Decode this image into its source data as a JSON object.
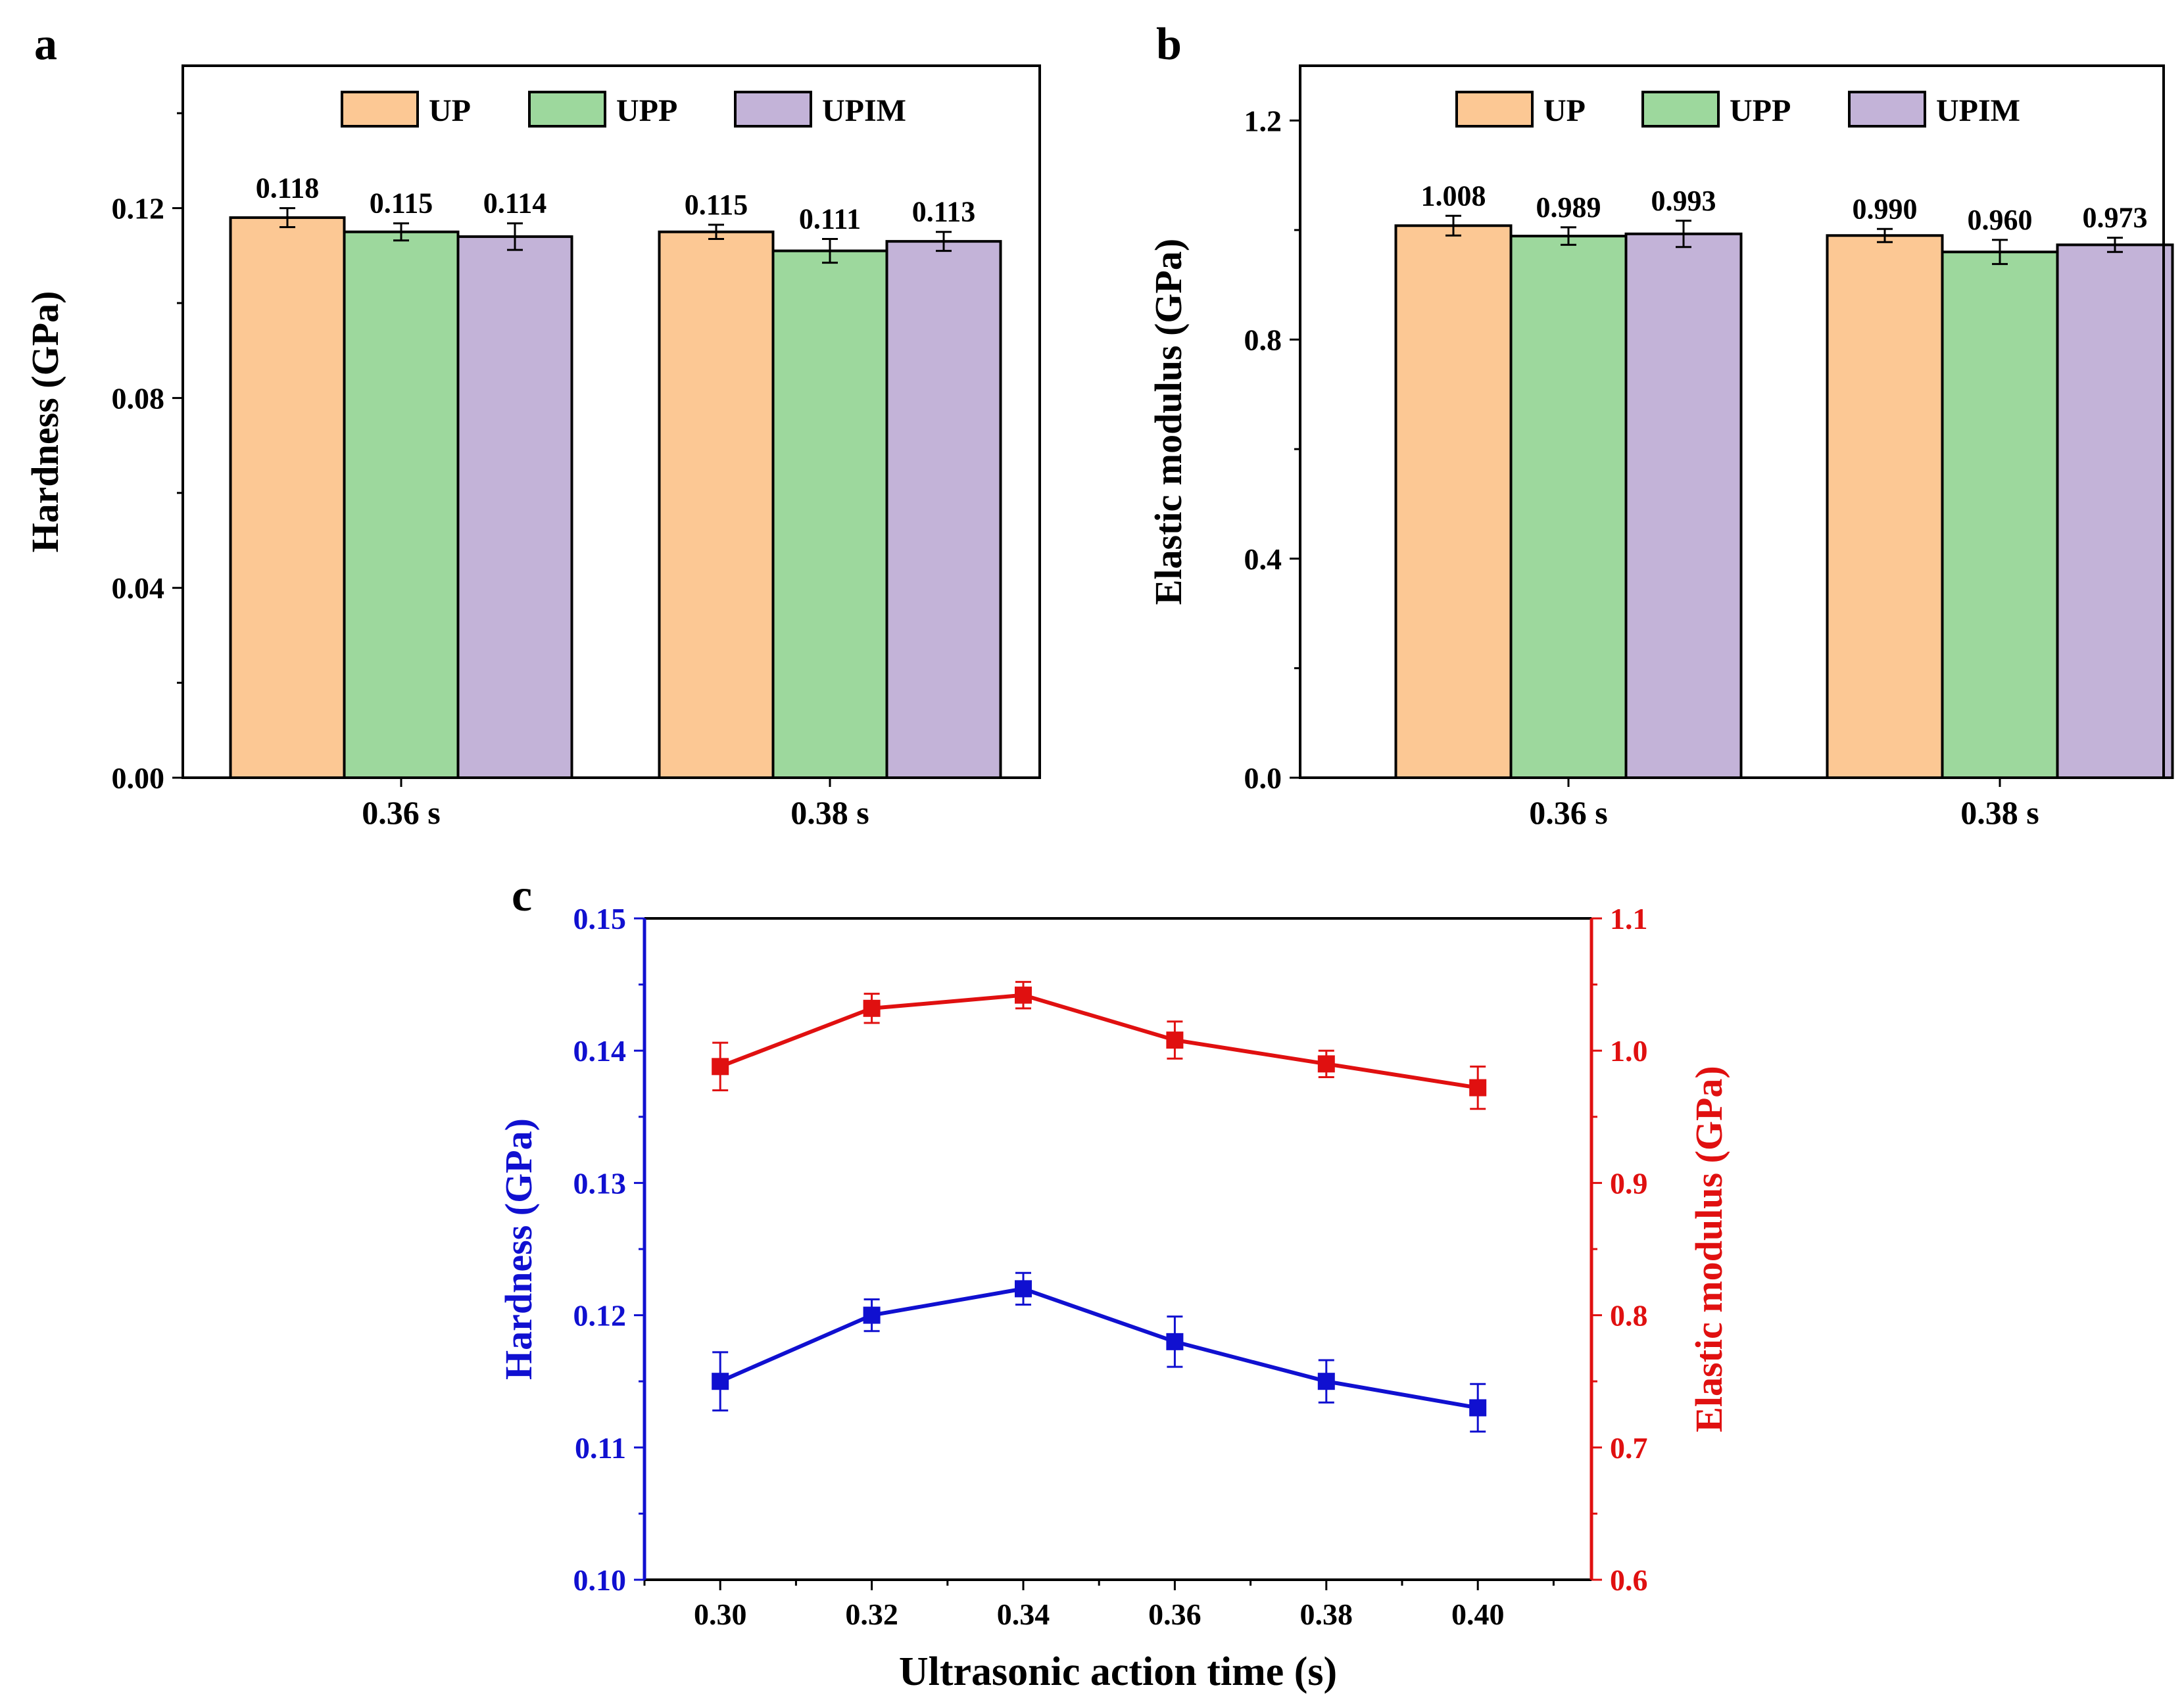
{
  "chart_data": [
    {
      "panel": "a",
      "type": "bar",
      "categories": [
        "0.36 s",
        "0.38 s"
      ],
      "series": [
        {
          "name": "UP",
          "color": "#FCC894",
          "values": [
            0.118,
            0.115
          ],
          "errors": [
            0.002,
            0.0015
          ],
          "labels": [
            "0.118",
            "0.115"
          ]
        },
        {
          "name": "UPP",
          "color": "#9DD89D",
          "values": [
            0.115,
            0.111
          ],
          "errors": [
            0.0018,
            0.0025
          ],
          "labels": [
            "0.115",
            "0.111"
          ]
        },
        {
          "name": "UPIM",
          "color": "#C3B3D8",
          "values": [
            0.114,
            0.113
          ],
          "errors": [
            0.0028,
            0.002
          ],
          "labels": [
            "0.114",
            "0.113"
          ]
        }
      ],
      "ylabel": "Hardness (GPa)",
      "xlabel": "",
      "ylim": [
        0,
        0.15
      ],
      "yticks": [
        0.0,
        0.04,
        0.08,
        0.12
      ],
      "ytick_labels": [
        "0.00",
        "0.04",
        "0.08",
        "0.12"
      ],
      "legend": "top-center"
    },
    {
      "panel": "b",
      "type": "bar",
      "categories": [
        "0.36 s",
        "0.38 s"
      ],
      "series": [
        {
          "name": "UP",
          "color": "#FCC894",
          "values": [
            1.008,
            0.99
          ],
          "errors": [
            0.018,
            0.012
          ],
          "labels": [
            "1.008",
            "0.990"
          ]
        },
        {
          "name": "UPP",
          "color": "#9DD89D",
          "values": [
            0.989,
            0.96
          ],
          "errors": [
            0.016,
            0.022
          ],
          "labels": [
            "0.989",
            "0.960"
          ]
        },
        {
          "name": "UPIM",
          "color": "#C3B3D8",
          "values": [
            0.993,
            0.973
          ],
          "errors": [
            0.024,
            0.013
          ],
          "labels": [
            "0.993",
            "0.973"
          ]
        }
      ],
      "ylabel": "Elastic modulus (GPa)",
      "xlabel": "",
      "ylim": [
        0,
        1.3
      ],
      "yticks": [
        0.0,
        0.4,
        0.8,
        1.2
      ],
      "ytick_labels": [
        "0.0",
        "0.4",
        "0.8",
        "1.2"
      ],
      "legend": "top-center"
    },
    {
      "panel": "c",
      "type": "line",
      "x": [
        0.3,
        0.32,
        0.34,
        0.36,
        0.38,
        0.4
      ],
      "xlim": [
        0.29,
        0.415
      ],
      "xticks": [
        0.3,
        0.32,
        0.34,
        0.36,
        0.38,
        0.4
      ],
      "xtick_labels": [
        "0.30",
        "0.32",
        "0.34",
        "0.36",
        "0.38",
        "0.40"
      ],
      "xlabel": "Ultrasonic action time (s)",
      "left_axis": {
        "label": "Hardness (GPa)",
        "color": "#1010D0",
        "ylim": [
          0.1,
          0.15
        ],
        "yticks": [
          0.1,
          0.11,
          0.12,
          0.13,
          0.14,
          0.15
        ],
        "ytick_labels": [
          "0.10",
          "0.11",
          "0.12",
          "0.13",
          "0.14",
          "0.15"
        ],
        "values": [
          0.115,
          0.12,
          0.122,
          0.118,
          0.115,
          0.113
        ],
        "errors": [
          0.0022,
          0.0012,
          0.0012,
          0.0019,
          0.0016,
          0.0018
        ]
      },
      "right_axis": {
        "label": "Elastic modulus (GPa)",
        "color": "#E01010",
        "ylim": [
          0.6,
          1.1
        ],
        "yticks": [
          0.6,
          0.7,
          0.8,
          0.9,
          1.0,
          1.1
        ],
        "ytick_labels": [
          "0.6",
          "0.7",
          "0.8",
          "0.9",
          "1.0",
          "1.1"
        ],
        "values": [
          0.988,
          1.032,
          1.042,
          1.008,
          0.99,
          0.972
        ],
        "errors": [
          0.018,
          0.011,
          0.01,
          0.014,
          0.01,
          0.016
        ]
      }
    }
  ],
  "panel_labels": {
    "a": "a",
    "b": "b",
    "c": "c"
  }
}
